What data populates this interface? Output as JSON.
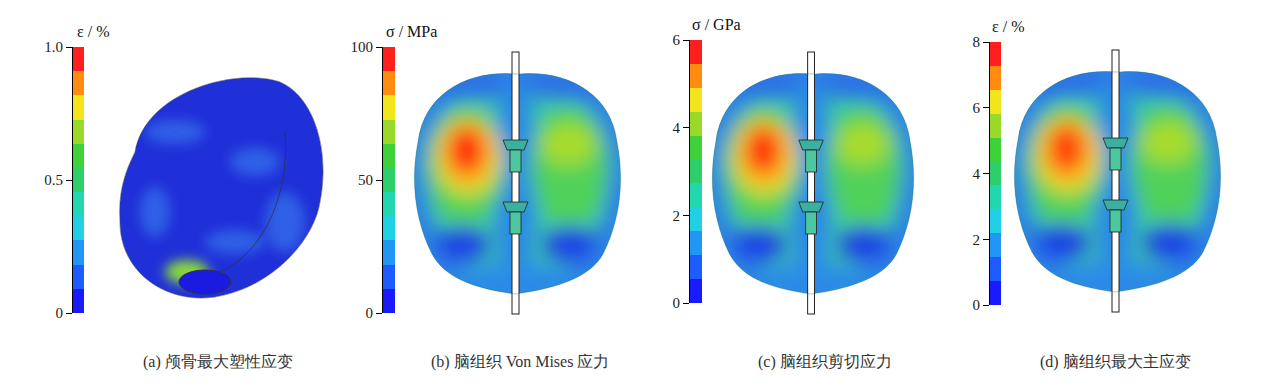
{
  "chart_data": [
    {
      "type": "contour",
      "title": "(a) 颅骨最大塑性应变",
      "ylabel": "ε / %",
      "ylim": [
        0,
        1
      ],
      "yticks": [
        0,
        0.5,
        {
          "value": 1,
          "label": "1.0"
        }
      ]
    },
    {
      "type": "contour",
      "title": "(b) 脑组织 Von Mises 应力",
      "ylabel": "σ / MPa",
      "ylim": [
        0,
        100
      ],
      "yticks": [
        0,
        50,
        100
      ]
    },
    {
      "type": "contour",
      "title": "(c) 脑组织剪切应力",
      "ylabel": "σ / GPa",
      "ylim": [
        0,
        6
      ],
      "yticks": [
        0,
        2,
        4,
        6
      ]
    },
    {
      "type": "contour",
      "title": "(d) 脑组织最大主应变",
      "ylabel": "ε / %",
      "ylim": [
        0,
        8
      ],
      "yticks": [
        0,
        2,
        4,
        6,
        8
      ]
    }
  ]
}
